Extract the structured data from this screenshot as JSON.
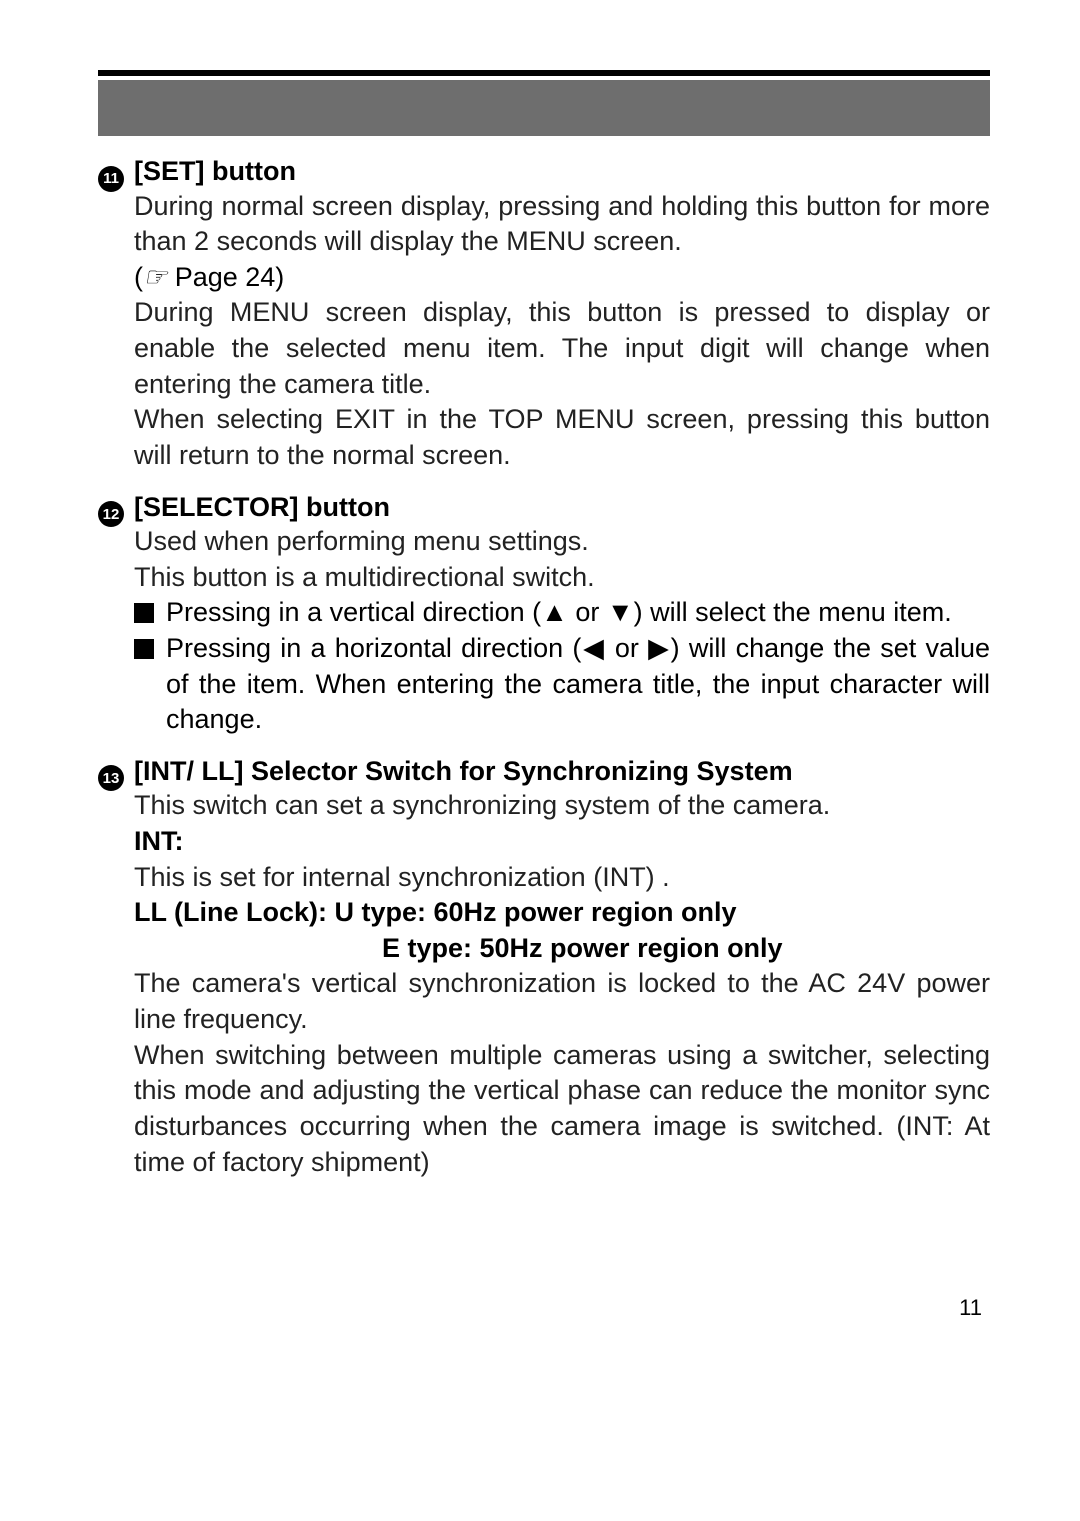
{
  "colors": {
    "rule": "#000000",
    "banner": "#6e6e6e",
    "text": "#222222",
    "circle_bg": "#000000",
    "circle_fg": "#ffffff"
  },
  "item11": {
    "num": "11",
    "title": "[SET]  button",
    "para1": "During normal screen display, pressing and holding this button for more than 2 seconds will display the MENU screen.",
    "pageref_prefix": "(",
    "pageref_icon": "☞",
    "pageref_text": " Page 24)",
    "para2": "During MENU screen display, this button is pressed to display or enable the selected menu item. The input digit will change when entering the camera title.",
    "para3": "When selecting EXIT in the TOP MENU screen, pressing this button will return to the normal screen."
  },
  "item12": {
    "num": "12",
    "title": "[SELECTOR] button",
    "para1": "Used when performing menu settings.",
    "para2": "This button is a multidirectional switch.",
    "bullet1_a": "Pressing in a vertical direction (",
    "bullet1_up": "▲",
    "bullet1_mid": " or ",
    "bullet1_down": "▼",
    "bullet1_b": ") will select the menu item.",
    "bullet2_a": "Pressing in a horizontal direction (",
    "bullet2_left": "◀",
    "bullet2_mid": " or ",
    "bullet2_right": "▶",
    "bullet2_b": ") will change the set value of the item. When entering the camera title, the input character will change."
  },
  "item13": {
    "num": "13",
    "title": "[INT/ LL] Selector Switch for Synchronizing System",
    "para1": "This switch can set a synchronizing system of the camera.",
    "int_label": "INT:",
    "int_text": "This is set for internal synchronization (INT) .",
    "ll_line1": "LL (Line Lock):  U type: 60Hz power region only",
    "ll_line2": "E type: 50Hz power region only",
    "para2": "The camera's vertical synchronization is locked to the AC 24V power line frequency.",
    "para3": "When switching between multiple cameras using a switcher, selecting this mode and adjusting the vertical phase can reduce the monitor sync disturbances occurring when the camera image is switched. (INT: At time of factory shipment)"
  },
  "pagenum": "11"
}
